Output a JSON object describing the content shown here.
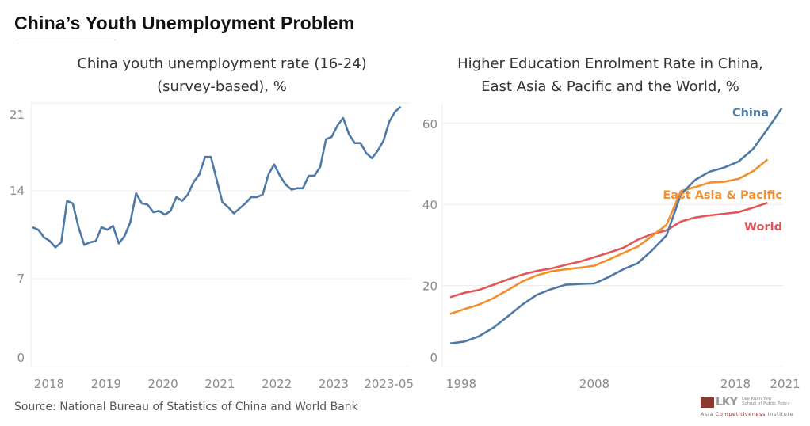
{
  "title": "China’s Youth Unemployment Problem",
  "source": "Source: National Bureau of Statistics of China and World Bank",
  "logo": {
    "mark": "LKY",
    "school_line1": "Lee Kuan Yew",
    "school_line2": "School of Public Policy",
    "institute_a": "Asia ",
    "institute_b": "Competitiveness",
    "institute_c": " Institute"
  },
  "chart_data": [
    {
      "type": "line",
      "title_line1": "China youth unemployment rate (16-24)",
      "title_line2": "(survey-based), %",
      "x_start": "2018-01",
      "x_end": "2023-05",
      "frequency": "monthly",
      "ylim": [
        0,
        21
      ],
      "y_ticks": [
        "0",
        "7",
        "14",
        "21"
      ],
      "x_ticks": [
        {
          "label": "2018",
          "index": 0
        },
        {
          "label": "2019",
          "index": 12
        },
        {
          "label": "2020",
          "index": 24
        },
        {
          "label": "2021",
          "index": 36
        },
        {
          "label": "2022",
          "index": 48
        },
        {
          "label": "2023",
          "index": 60
        },
        {
          "label": "2023-05",
          "index": 64
        }
      ],
      "color": "#4e79a7",
      "values": [
        11.1,
        10.9,
        10.3,
        10.0,
        9.5,
        9.9,
        13.2,
        13.0,
        11.1,
        9.7,
        9.9,
        10.0,
        11.1,
        10.9,
        11.2,
        9.8,
        10.4,
        11.5,
        13.8,
        13.0,
        12.9,
        12.3,
        12.4,
        12.1,
        12.4,
        13.5,
        13.2,
        13.7,
        14.7,
        15.3,
        16.7,
        16.7,
        14.9,
        13.1,
        12.7,
        12.2,
        12.6,
        13.0,
        13.5,
        13.5,
        13.7,
        15.3,
        16.1,
        15.2,
        14.5,
        14.1,
        14.2,
        14.2,
        15.2,
        15.2,
        15.9,
        18.1,
        18.3,
        19.2,
        19.8,
        18.5,
        17.8,
        17.8,
        17.0,
        16.6,
        17.2,
        18.0,
        19.5,
        20.3,
        20.7
      ]
    },
    {
      "type": "line",
      "title_line1": "Higher Education Enrolment Rate in China,",
      "title_line2": "East Asia & Pacific and the World, %",
      "ylim": [
        0,
        64
      ],
      "y_ticks": [
        "0",
        "20",
        "40",
        "60"
      ],
      "x_ticks": [
        "1998",
        "2008",
        "2018",
        "2021"
      ],
      "x_start_year": 1998,
      "series": [
        {
          "name": "China",
          "color": "#4e79a7",
          "values": [
            5.7,
            6.2,
            7.5,
            9.6,
            12.4,
            15.3,
            17.7,
            19.1,
            20.2,
            20.4,
            20.5,
            22.1,
            24.0,
            25.5,
            28.7,
            32.4,
            42.5,
            46.1,
            48.1,
            49.1,
            50.6,
            53.7,
            58.6,
            63.8
          ]
        },
        {
          "name": "East Asia & Pacific",
          "color": "#f28e2b",
          "values": [
            13.0,
            14.2,
            15.3,
            16.9,
            18.9,
            21.0,
            22.5,
            23.5,
            24.0,
            24.4,
            24.9,
            26.4,
            28.0,
            29.6,
            32.2,
            35.0,
            43.3,
            44.3,
            45.4,
            45.6,
            46.3,
            48.2,
            51.1
          ]
        },
        {
          "name": "World",
          "color": "#e15759",
          "values": [
            17.1,
            18.2,
            18.9,
            20.2,
            21.5,
            22.7,
            23.6,
            24.2,
            25.1,
            25.9,
            27.0,
            28.1,
            29.3,
            31.3,
            32.7,
            33.6,
            35.8,
            36.8,
            37.3,
            37.7,
            38.1,
            39.2,
            40.4
          ]
        }
      ]
    }
  ]
}
